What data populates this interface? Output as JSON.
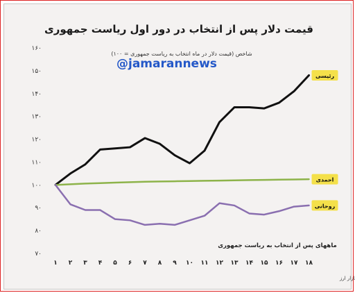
{
  "watermark": "@jamarannews",
  "chart_data": {
    "type": "line",
    "title": "قیمت دلار پس از انتخاب در دور اول ریاست جمهوری",
    "ylabel": "شاخص (قیمت دلار در ماه انتخاب به ریاست جمهوری = ۱۰۰)",
    "xlabel": "ماههای پس از انتخاب به ریاست جمهوری",
    "footnote": "تحلیل و استنتاج: احسان سلطانی بر اساس داده‌های بانک مرکزی و بازار ارز",
    "x": [
      1,
      2,
      3,
      4,
      5,
      6,
      7,
      8,
      9,
      10,
      11,
      12,
      13,
      14,
      15,
      16,
      17,
      18
    ],
    "x_tick_labels": [
      "۱",
      "۲",
      "۳",
      "۴",
      "۵",
      "۶",
      "۷",
      "۸",
      "۹",
      "۱۰",
      "۱۱",
      "۱۲",
      "۱۳",
      "۱۴",
      "۱۵",
      "۱۶",
      "۱۷",
      "۱۸"
    ],
    "y_ticks": [
      70,
      80,
      90,
      100,
      110,
      120,
      130,
      140,
      150,
      160
    ],
    "y_tick_labels": [
      "۷۰",
      "۸۰",
      "۹۰",
      "۱۰۰",
      "۱۱۰",
      "۱۲۰",
      "۱۳۰",
      "۱۴۰",
      "۱۵۰",
      "۱۶۰"
    ],
    "ylim": [
      70,
      160
    ],
    "grid": false,
    "series": [
      {
        "name": "رئیسی",
        "color": "#111111",
        "values": [
          100,
          105,
          109,
          115.5,
          116,
          116.5,
          120.5,
          118,
          113,
          109.5,
          115,
          127.5,
          134,
          134,
          133.5,
          136,
          141,
          148
        ]
      },
      {
        "name": "احمدی",
        "color": "#8db34a",
        "values": [
          100,
          100.3,
          100.6,
          100.8,
          101,
          101.2,
          101.4,
          101.5,
          101.6,
          101.7,
          101.8,
          101.9,
          102,
          102.1,
          102.2,
          102.3,
          102.4,
          102.5
        ]
      },
      {
        "name": "روحانی",
        "color": "#8a6fb0",
        "values": [
          100,
          91.5,
          89,
          89,
          85,
          84.5,
          82.5,
          83,
          82.5,
          84.5,
          86.5,
          92,
          91,
          87.5,
          87,
          88.5,
          90.5,
          91
        ]
      }
    ],
    "legend_placement": "labels at line ends, right"
  }
}
